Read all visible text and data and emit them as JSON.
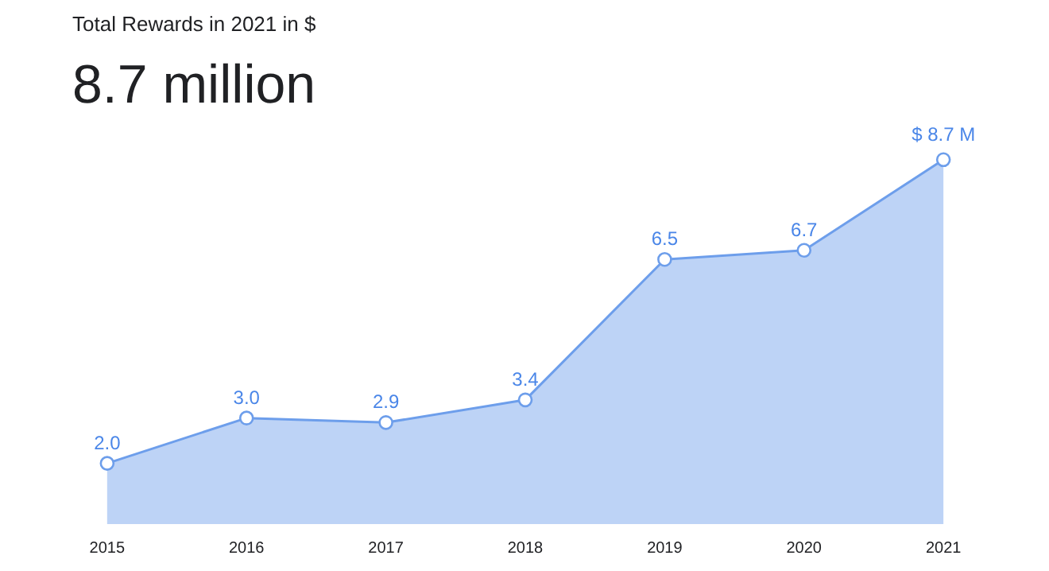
{
  "chart_data": {
    "type": "area",
    "title": "Total Rewards in 2021 in $",
    "subtitle": "8.7 million",
    "categories": [
      "2015",
      "2016",
      "2017",
      "2018",
      "2019",
      "2020",
      "2021"
    ],
    "series": [
      {
        "color": "#6d9eeb",
        "values": [
          2.0,
          3.0,
          2.9,
          3.4,
          6.5,
          6.7,
          8.7
        ],
        "value_labels": [
          "2.0",
          "3.0",
          "2.9",
          "3.4",
          "6.5",
          "6.7",
          "$ 8.7 M"
        ]
      }
    ],
    "marker": "circle",
    "grid": false
  }
}
